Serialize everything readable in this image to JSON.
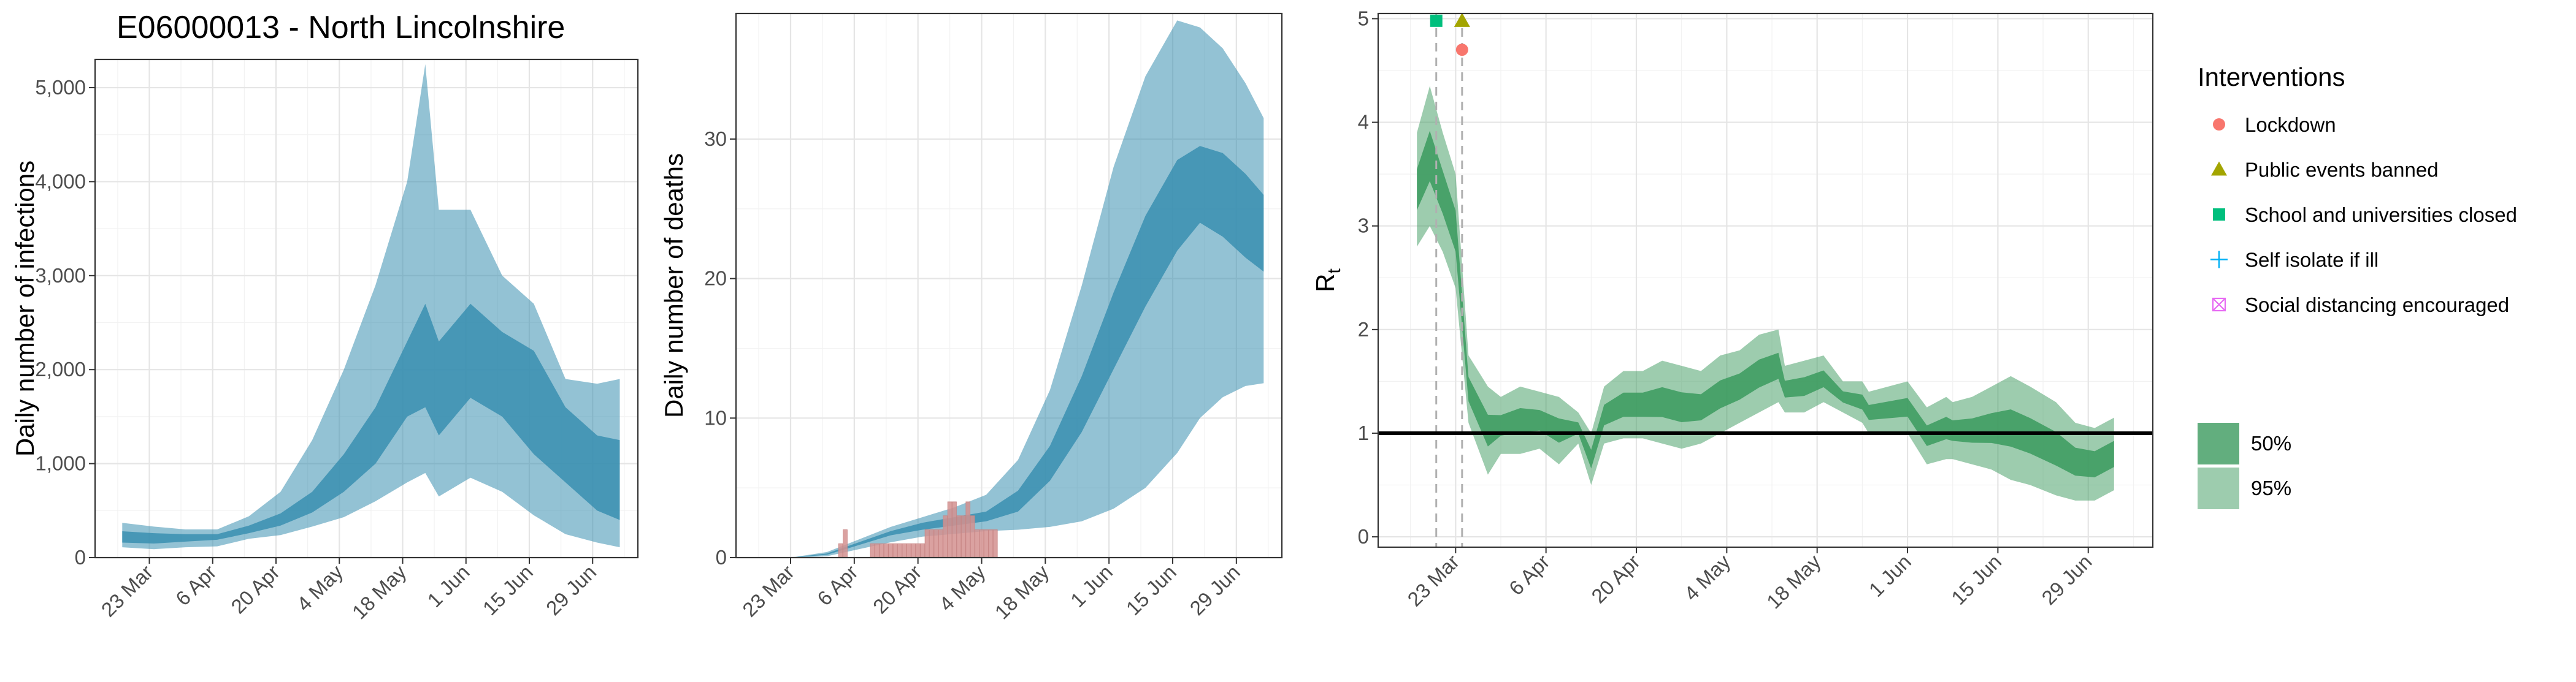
{
  "title": "E06000013 - North Lincolnshire",
  "colors": {
    "infection_band": "#3a8fb0",
    "deaths_observed": "#d4908f",
    "rt_band": "#3b9a5e",
    "lockdown": "#f8766d",
    "public_events": "#a3a500",
    "school": "#00bf7d",
    "self_isolate": "#00b0f6",
    "social_distancing": "#e76bf3"
  },
  "chart_data": [
    {
      "type": "area",
      "name": "infections",
      "ylabel": "Daily number of infections",
      "ylim": [
        0,
        5300
      ],
      "y_ticks": [
        0,
        1000,
        2000,
        3000,
        4000,
        5000
      ],
      "y_tick_labels": [
        "0",
        "1,000",
        "2,000",
        "3,000",
        "4,000",
        "5,000"
      ],
      "x_tick_labels": [
        "23 Mar",
        "6 Apr",
        "20 Apr",
        "4 May",
        "18 May",
        "1 Jun",
        "15 Jun",
        "29 Jun"
      ],
      "grid": true,
      "x": [
        "2020-03-17",
        "2020-03-24",
        "2020-03-31",
        "2020-04-07",
        "2020-04-14",
        "2020-04-21",
        "2020-04-28",
        "2020-05-05",
        "2020-05-12",
        "2020-05-19",
        "2020-05-23",
        "2020-05-26",
        "2020-06-02",
        "2020-06-09",
        "2020-06-16",
        "2020-06-23",
        "2020-06-30",
        "2020-07-05"
      ],
      "bands": [
        {
          "level": "95%",
          "lower": [
            110,
            90,
            110,
            120,
            200,
            240,
            330,
            430,
            600,
            800,
            900,
            650,
            850,
            700,
            450,
            250,
            160,
            110
          ],
          "upper": [
            370,
            330,
            300,
            300,
            440,
            700,
            1250,
            2000,
            2900,
            4000,
            5250,
            3700,
            3700,
            3000,
            2700,
            1900,
            1850,
            1900
          ]
        },
        {
          "level": "50%",
          "lower": [
            160,
            150,
            170,
            190,
            260,
            340,
            480,
            700,
            1000,
            1500,
            1600,
            1300,
            1700,
            1500,
            1100,
            800,
            500,
            400
          ],
          "upper": [
            280,
            260,
            250,
            250,
            340,
            470,
            700,
            1100,
            1600,
            2300,
            2700,
            2300,
            2700,
            2400,
            2200,
            1600,
            1300,
            1250
          ]
        }
      ]
    },
    {
      "type": "area",
      "name": "deaths",
      "ylabel": "Daily number of deaths",
      "ylim": [
        0,
        39
      ],
      "y_ticks": [
        0,
        10,
        20,
        30
      ],
      "y_tick_labels": [
        "0",
        "10",
        "20",
        "30"
      ],
      "x_tick_labels": [
        "23 Mar",
        "6 Apr",
        "20 Apr",
        "4 May",
        "18 May",
        "1 Jun",
        "15 Jun",
        "29 Jun"
      ],
      "grid": true,
      "x": [
        "2020-03-17",
        "2020-03-24",
        "2020-03-31",
        "2020-04-07",
        "2020-04-14",
        "2020-04-21",
        "2020-04-28",
        "2020-05-05",
        "2020-05-12",
        "2020-05-19",
        "2020-05-26",
        "2020-06-02",
        "2020-06-09",
        "2020-06-16",
        "2020-06-21",
        "2020-06-26",
        "2020-07-01",
        "2020-07-05"
      ],
      "bands": [
        {
          "level": "95%",
          "lower": [
            0,
            0,
            0.1,
            0.6,
            1.1,
            1.5,
            1.7,
            1.9,
            2.0,
            2.2,
            2.6,
            3.5,
            5.0,
            7.5,
            10.0,
            11.5,
            12.3,
            12.5
          ],
          "upper": [
            0,
            0.05,
            0.4,
            1.3,
            2.2,
            2.9,
            3.6,
            4.5,
            7.0,
            12.0,
            19.5,
            28.0,
            34.5,
            38.5,
            38.0,
            36.5,
            34.0,
            31.5
          ]
        },
        {
          "level": "50%",
          "lower": [
            0,
            0.02,
            0.2,
            0.9,
            1.6,
            2.0,
            2.3,
            2.6,
            3.3,
            5.5,
            9.0,
            13.5,
            18.0,
            22.0,
            24.0,
            23.0,
            21.5,
            20.5
          ]
        }
      ],
      "median_upper": [
        0,
        0.03,
        0.3,
        1.1,
        1.9,
        2.5,
        2.9,
        3.3,
        4.8,
        8.0,
        13.0,
        19.0,
        24.5,
        28.5,
        29.5,
        29.0,
        27.5,
        26.0
      ],
      "observed": {
        "x": [
          "2020-04-03",
          "2020-04-04",
          "2020-04-05",
          "2020-04-06",
          "2020-04-07",
          "2020-04-08",
          "2020-04-09",
          "2020-04-10",
          "2020-04-11",
          "2020-04-12",
          "2020-04-13",
          "2020-04-14",
          "2020-04-15",
          "2020-04-16",
          "2020-04-17",
          "2020-04-18",
          "2020-04-19",
          "2020-04-20",
          "2020-04-21",
          "2020-04-22",
          "2020-04-23",
          "2020-04-24",
          "2020-04-25",
          "2020-04-26",
          "2020-04-27",
          "2020-04-28",
          "2020-04-29",
          "2020-04-30",
          "2020-05-01",
          "2020-05-02",
          "2020-05-03",
          "2020-05-04",
          "2020-05-05",
          "2020-05-06",
          "2020-05-07"
        ],
        "values": [
          1,
          2,
          0,
          0,
          0,
          0,
          0,
          1,
          1,
          1,
          1,
          1,
          1,
          1,
          1,
          1,
          1,
          1,
          1,
          2,
          2,
          2,
          2,
          3,
          4,
          4,
          3,
          3,
          4,
          3,
          2,
          2,
          2,
          2,
          2
        ]
      }
    },
    {
      "type": "area",
      "name": "rt",
      "ylabel": "R",
      "ylabel_subscript": "t",
      "ylim": [
        -0.1,
        5.05
      ],
      "y_ticks": [
        0,
        1,
        2,
        3,
        4,
        5
      ],
      "y_tick_labels": [
        "0",
        "1",
        "2",
        "3",
        "4",
        "5"
      ],
      "x_tick_labels": [
        "23 Mar",
        "6 Apr",
        "20 Apr",
        "4 May",
        "18 May",
        "1 Jun",
        "15 Jun",
        "29 Jun"
      ],
      "grid": true,
      "reference_line": 1,
      "intervention_dates": [
        "2020-03-20",
        "2020-03-24"
      ],
      "markers": [
        {
          "label": "Lockdown",
          "x": "2020-03-24",
          "y": 4.7,
          "shape": "circle"
        },
        {
          "label": "Public events banned",
          "x": "2020-03-24",
          "y": 4.98,
          "shape": "triangle"
        },
        {
          "label": "School and universities closed",
          "x": "2020-03-20",
          "y": 4.98,
          "shape": "square"
        }
      ],
      "x": [
        "2020-03-17",
        "2020-03-19",
        "2020-03-21",
        "2020-03-23",
        "2020-03-25",
        "2020-03-28",
        "2020-03-30",
        "2020-04-02",
        "2020-04-05",
        "2020-04-08",
        "2020-04-11",
        "2020-04-13",
        "2020-04-15",
        "2020-04-18",
        "2020-04-21",
        "2020-04-24",
        "2020-04-27",
        "2020-04-30",
        "2020-05-03",
        "2020-05-06",
        "2020-05-09",
        "2020-05-12",
        "2020-05-13",
        "2020-05-16",
        "2020-05-19",
        "2020-05-22",
        "2020-05-25",
        "2020-05-26",
        "2020-05-29",
        "2020-06-01",
        "2020-06-04",
        "2020-06-07",
        "2020-06-08",
        "2020-06-11",
        "2020-06-14",
        "2020-06-17",
        "2020-06-20",
        "2020-06-24",
        "2020-06-27",
        "2020-06-30",
        "2020-07-03"
      ],
      "bands": [
        {
          "level": "95%",
          "lower": [
            2.8,
            3.0,
            2.75,
            2.4,
            1.1,
            0.6,
            0.8,
            0.8,
            0.85,
            0.7,
            0.9,
            0.5,
            0.9,
            0.95,
            0.95,
            0.9,
            0.85,
            0.9,
            1.0,
            1.1,
            1.2,
            1.3,
            1.2,
            1.2,
            1.3,
            1.2,
            1.1,
            1.0,
            1.0,
            1.0,
            0.7,
            0.75,
            0.75,
            0.7,
            0.65,
            0.55,
            0.5,
            0.4,
            0.35,
            0.35,
            0.45
          ]
        },
        {
          "level": "95%",
          "upper": [
            3.9,
            4.35,
            3.9,
            3.5,
            1.75,
            1.45,
            1.35,
            1.45,
            1.4,
            1.35,
            1.2,
            1.0,
            1.45,
            1.6,
            1.6,
            1.7,
            1.65,
            1.6,
            1.75,
            1.8,
            1.95,
            2.0,
            1.65,
            1.7,
            1.75,
            1.5,
            1.5,
            1.4,
            1.45,
            1.5,
            1.25,
            1.35,
            1.3,
            1.35,
            1.45,
            1.55,
            1.45,
            1.3,
            1.1,
            1.05,
            1.15
          ]
        }
      ]
    }
  ],
  "legend": {
    "title": "Interventions",
    "items": [
      {
        "label": "Lockdown",
        "shape": "circle"
      },
      {
        "label": "Public events banned",
        "shape": "triangle"
      },
      {
        "label": "School and universities closed",
        "shape": "square"
      },
      {
        "label": "Self isolate if ill",
        "shape": "plus"
      },
      {
        "label": "Social distancing encouraged",
        "shape": "boxcross"
      }
    ],
    "bands": [
      {
        "label": "50%"
      },
      {
        "label": "95%"
      }
    ]
  }
}
